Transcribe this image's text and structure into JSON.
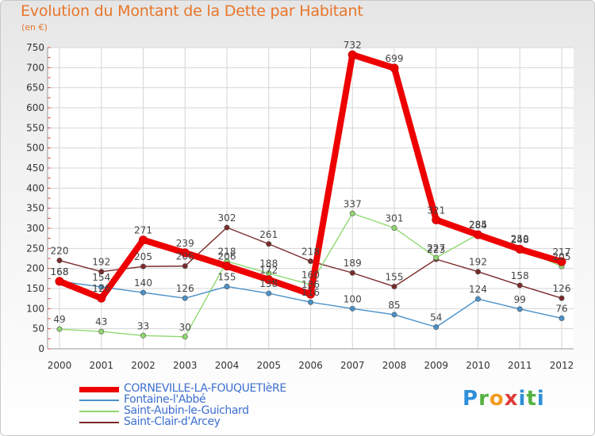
{
  "title": "Evolution du Montant de la Dette par Habitant",
  "subtitle": "(en €)",
  "logo_text": "Proxiti",
  "chart_data": {
    "type": "line",
    "title": "Evolution du Montant de la Dette par Habitant",
    "subtitle": "(en €)",
    "x": [
      "2000",
      "2001",
      "2002",
      "2003",
      "2004",
      "2005",
      "2006",
      "2007",
      "2008",
      "2009",
      "2010",
      "2011",
      "2012"
    ],
    "ylim": [
      0,
      750
    ],
    "yticks": [
      "0",
      "50",
      "100",
      "150",
      "200",
      "250",
      "300",
      "350",
      "400",
      "450",
      "500",
      "550",
      "600",
      "650",
      "700",
      "750"
    ],
    "grid": true,
    "legend_position": "bottom-left",
    "series": [
      {
        "name": "CORNEVILLE-LA-FOUQUETIèRE",
        "color": "#ee0000",
        "values": [
          168,
          126,
          271,
          239,
          206,
          172,
          136,
          732,
          699,
          321,
          284,
          248,
          217
        ]
      },
      {
        "name": "Fontaine-l'Abbé",
        "color": "#4a90c8",
        "values": [
          168,
          154,
          140,
          126,
          155,
          138,
          116,
          100,
          85,
          54,
          124,
          99,
          76
        ]
      },
      {
        "name": "Saint-Aubin-le-Guichard",
        "color": "#90d870",
        "values": [
          49,
          43,
          33,
          30,
          218,
          188,
          160,
          337,
          301,
          227,
          285,
          250,
          205
        ]
      },
      {
        "name": "Saint-Clair-d'Arcey",
        "color": "#7a2a2a",
        "values": [
          220,
          192,
          205,
          206,
          302,
          261,
          218,
          189,
          155,
          223,
          192,
          158,
          126
        ]
      }
    ]
  }
}
